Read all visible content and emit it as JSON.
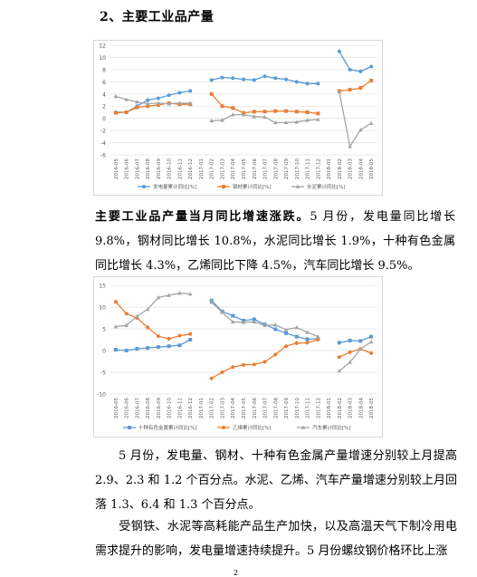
{
  "heading": "2、主要工业品产量",
  "paragraph1": {
    "lead": "主要工业品产量当月同比增速涨跌。",
    "text": "5 月份，发电量同比增长 9.8%，钢材同比增长 10.8%，水泥同比增长 1.9%，十种有色金属同比增长 4.3%，乙烯同比下降 4.5%，汽车同比增长 9.5%。"
  },
  "paragraph2": "5 月份，发电量、钢材、十种有色金属产量增速分别较上月提高 2.9、2.3 和 1.2 个百分点。水泥、乙烯、汽车产量增速分别较上月回落 1.3、6.4 和 1.3 个百分点。",
  "paragraph3": "受钢铁、水泥等高耗能产品生产加快，以及高温天气下制冷用电需求提升的影响，发电量增速持续提升。5 月份螺纹钢价格环比上涨",
  "page_number": "2",
  "chart_data": [
    {
      "type": "line",
      "title": "",
      "xlabel": "",
      "ylabel": "",
      "ylim": [
        -6,
        12
      ],
      "yticks": [
        -6,
        -4,
        -2,
        0,
        2,
        4,
        6,
        8,
        10,
        12
      ],
      "categories": [
        "2016-05",
        "2016-06",
        "2016-07",
        "2016-08",
        "2016-09",
        "2016-10",
        "2016-11",
        "2016-12",
        "2017-01",
        "2017-02",
        "2017-03",
        "2017-04",
        "2017-05",
        "2017-06",
        "2017-07",
        "2017-08",
        "2017-09",
        "2017-10",
        "2017-11",
        "2017-12",
        "2018-01",
        "2018-02",
        "2018-03",
        "2018-04",
        "2018-05"
      ],
      "legend_position": "bottom",
      "grid": true,
      "series": [
        {
          "name": "发电量累计同比[%]",
          "color": "#5b9bd5",
          "marker": "circle",
          "values": [
            1.0,
            1.0,
            2.0,
            3.0,
            3.3,
            3.8,
            4.2,
            4.5,
            null,
            6.3,
            6.7,
            6.6,
            6.4,
            6.3,
            6.9,
            6.6,
            6.4,
            6.0,
            5.7,
            5.7,
            null,
            11.0,
            8.0,
            7.7,
            8.5
          ]
        },
        {
          "name": "钢材累计同比[%]",
          "color": "#ed7d31",
          "marker": "square",
          "values": [
            0.9,
            1.0,
            1.8,
            2.0,
            2.2,
            2.5,
            2.3,
            2.3,
            null,
            4.0,
            2.0,
            1.7,
            0.9,
            1.1,
            1.1,
            1.2,
            1.2,
            1.1,
            1.0,
            0.8,
            null,
            4.5,
            4.7,
            5.0,
            6.2
          ]
        },
        {
          "name": "水泥累计同比[%]",
          "color": "#a5a5a5",
          "marker": "triangle",
          "values": [
            3.6,
            3.1,
            2.7,
            2.4,
            2.5,
            2.4,
            2.5,
            2.5,
            null,
            -0.4,
            -0.3,
            0.6,
            0.6,
            0.3,
            0.2,
            -0.7,
            -0.7,
            -0.6,
            -0.3,
            -0.2,
            null,
            4.4,
            -4.6,
            -1.9,
            -0.8
          ]
        }
      ]
    },
    {
      "type": "line",
      "title": "",
      "xlabel": "",
      "ylabel": "",
      "ylim": [
        -10,
        15
      ],
      "yticks": [
        -10,
        -5,
        0,
        5,
        10,
        15
      ],
      "categories": [
        "2016-05",
        "2016-06",
        "2016-07",
        "2016-08",
        "2016-09",
        "2016-10",
        "2016-11",
        "2016-12",
        "2017-01",
        "2017-02",
        "2017-03",
        "2017-04",
        "2017-05",
        "2017-06",
        "2017-07",
        "2017-08",
        "2017-09",
        "2017-10",
        "2017-11",
        "2017-12",
        "2018-01",
        "2018-02",
        "2018-03",
        "2018-04",
        "2018-05"
      ],
      "legend_position": "bottom",
      "grid": true,
      "series": [
        {
          "name": "十种有色金属累计同比[%]",
          "color": "#5b9bd5",
          "marker": "square",
          "values": [
            0.2,
            0.0,
            0.4,
            0.6,
            0.8,
            1.0,
            1.2,
            2.5,
            null,
            11.5,
            9.0,
            8.0,
            6.9,
            7.2,
            6.0,
            4.9,
            4.0,
            3.2,
            2.6,
            2.7,
            null,
            1.8,
            2.3,
            2.2,
            3.2
          ]
        },
        {
          "name": "乙烯累计同比[%]",
          "color": "#ed7d31",
          "marker": "circle",
          "values": [
            11.2,
            8.5,
            7.5,
            5.3,
            3.3,
            2.7,
            3.4,
            3.8,
            null,
            -6.4,
            -5.0,
            -3.8,
            -3.3,
            -3.2,
            -2.6,
            -0.9,
            1.0,
            1.7,
            1.8,
            2.5,
            null,
            -1.5,
            -0.4,
            0.4,
            -0.6
          ]
        },
        {
          "name": "汽车累计同比[%]",
          "color": "#a5a5a5",
          "marker": "triangle",
          "values": [
            5.5,
            5.8,
            7.9,
            9.5,
            12.2,
            12.7,
            13.2,
            13.0,
            null,
            11.1,
            8.8,
            6.6,
            6.5,
            6.6,
            5.8,
            5.9,
            4.8,
            5.3,
            4.2,
            3.2,
            null,
            -4.7,
            -2.7,
            0.4,
            2.0
          ]
        }
      ]
    }
  ]
}
